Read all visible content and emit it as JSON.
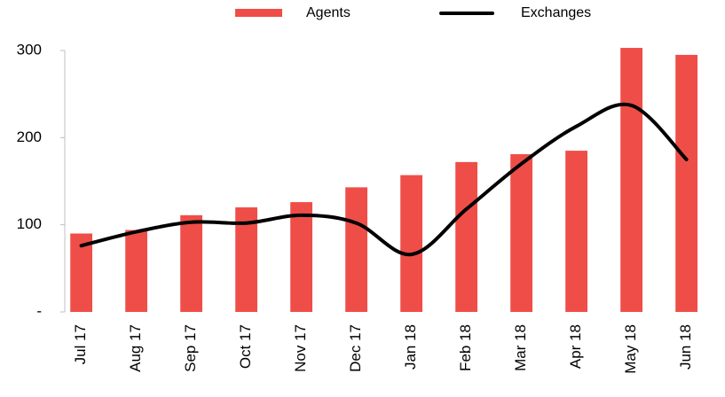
{
  "chart_data": {
    "type": "bar_line",
    "categories": [
      "Jul 17",
      "Aug 17",
      "Sep 17",
      "Oct 17",
      "Nov 17",
      "Dec 17",
      "Jan 18",
      "Feb 18",
      "Mar 18",
      "Apr 18",
      "May 18",
      "Jun 18"
    ],
    "series": [
      {
        "name": "Agents",
        "color": "#ef4e48",
        "type": "bar",
        "values": [
          90,
          94,
          111,
          120,
          126,
          143,
          157,
          172,
          181,
          185,
          303,
          295
        ]
      },
      {
        "name": "Exchanges",
        "color": "#000000",
        "type": "line",
        "values": [
          76,
          92,
          103,
          102,
          111,
          102,
          66,
          118,
          170,
          213,
          237,
          175
        ]
      }
    ],
    "ylim": [
      0,
      300
    ],
    "yticks": [
      {
        "value": 0,
        "label": "-"
      },
      100,
      200,
      300
    ]
  }
}
